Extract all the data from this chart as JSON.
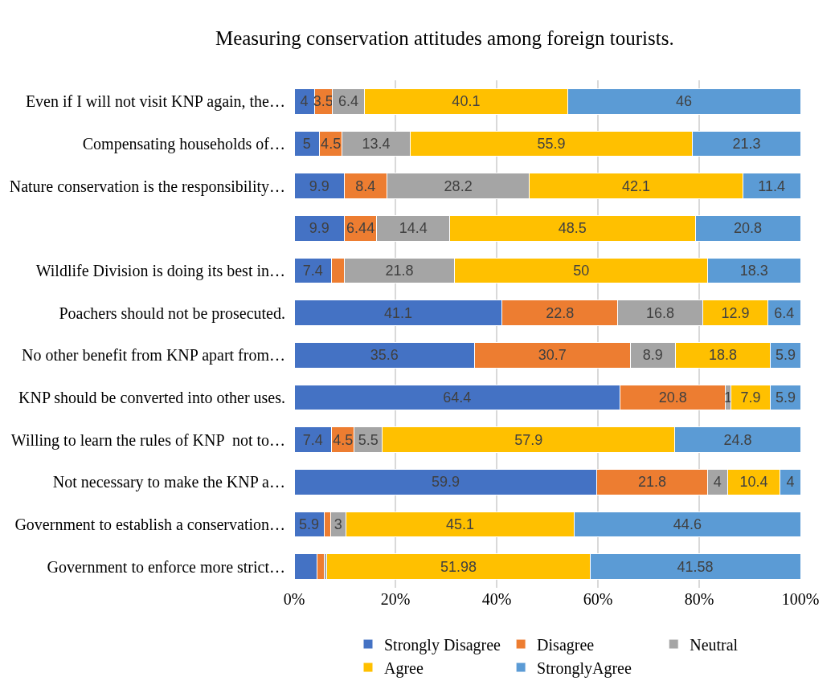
{
  "chart_data": {
    "type": "bar",
    "orientation": "horizontal",
    "stacked": true,
    "title": "Measuring conservation attitudes among foreign tourists.",
    "categories": [
      "Even if I will not visit KNP again, the…",
      "Compensating households of…",
      "Nature conservation is the responsibility…",
      null,
      "Wildlife Division is doing its best in…",
      "Poachers should not be prosecuted.",
      "No other benefit from KNP apart from…",
      "KNP should be converted into other uses.",
      "Willing to learn the rules of KNP  not to…",
      "Not necessary to make the KNP a…",
      "Government to establish a conservation…",
      "Government to enforce more strict…"
    ],
    "series": [
      {
        "name": "Strongly Disagree",
        "color": "#4472c4",
        "values": [
          4,
          5,
          9.9,
          9.9,
          7.4,
          41.1,
          35.6,
          64.4,
          7.4,
          59.9,
          5.9,
          4.5
        ],
        "value_labels": [
          "4",
          "5",
          "9.9",
          "9.9",
          "7.4",
          "41.1",
          "35.6",
          "64.4",
          "7.4",
          "59.9",
          "5.9",
          null
        ]
      },
      {
        "name": "Disagree",
        "color": "#ed7d31",
        "values": [
          3.5,
          4.5,
          8.4,
          6.44,
          2.5,
          22.8,
          30.7,
          20.8,
          4.5,
          21.8,
          1.3,
          1.5
        ],
        "value_labels": [
          "3.5",
          "4.5",
          "8.4",
          "6.44",
          null,
          "22.8",
          "30.7",
          "20.8",
          "4.5",
          "21.8",
          null,
          null
        ]
      },
      {
        "name": "Neutral",
        "color": "#a5a5a5",
        "values": [
          6.4,
          13.4,
          28.2,
          14.4,
          21.8,
          16.8,
          8.9,
          1,
          5.5,
          4,
          3,
          0.5
        ],
        "value_labels": [
          "6.4",
          "13.4",
          "28.2",
          "14.4",
          "21.8",
          "16.8",
          "8.9",
          "1",
          "5.5",
          "4",
          "3",
          null
        ]
      },
      {
        "name": "Agree",
        "color": "#ffc000",
        "values": [
          40.1,
          55.9,
          42.1,
          48.5,
          50,
          12.9,
          18.8,
          7.9,
          57.9,
          10.4,
          45.1,
          51.98
        ],
        "value_labels": [
          "40.1",
          "55.9",
          "42.1",
          "48.5",
          "50",
          "12.9",
          "18.8",
          "7.9",
          "57.9",
          "10.4",
          "45.1",
          "51.98"
        ]
      },
      {
        "name": "StronglyAgree",
        "color": "#5b9bd5",
        "values": [
          46,
          21.3,
          11.4,
          20.8,
          18.3,
          6.4,
          5.9,
          5.9,
          24.8,
          4,
          44.6,
          41.58
        ],
        "value_labels": [
          "46",
          "21.3",
          "11.4",
          "20.8",
          "18.3",
          "6.4",
          "5.9",
          "5.9",
          "24.8",
          "4",
          "44.6",
          "41.58"
        ]
      }
    ],
    "xlim": [
      0,
      100
    ],
    "xticks": [
      {
        "value": 0,
        "label": "0%"
      },
      {
        "value": 20,
        "label": "20%"
      },
      {
        "value": 40,
        "label": "40%"
      },
      {
        "value": 60,
        "label": "60%"
      },
      {
        "value": 80,
        "label": "80%"
      },
      {
        "value": 100,
        "label": "100%"
      }
    ],
    "grid": "x",
    "legend": "bottom"
  }
}
